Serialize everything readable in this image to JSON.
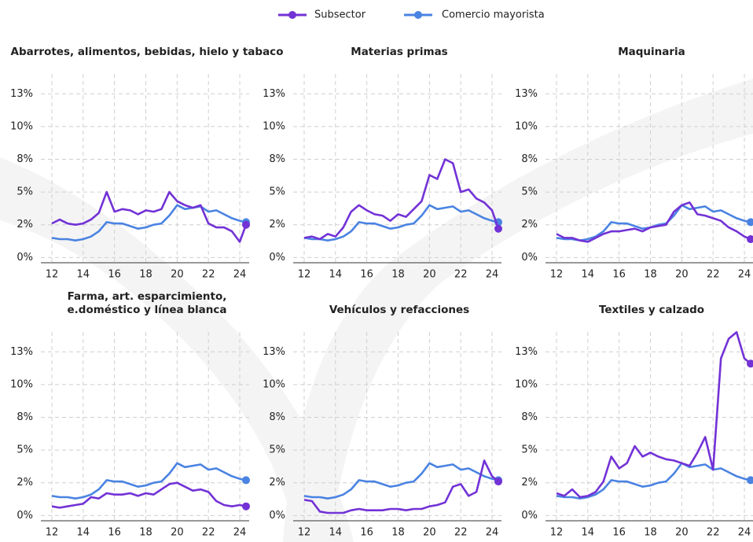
{
  "chart_data": [
    {
      "type": "line",
      "title": [
        "Abarrotes, alimentos, bebidas, hielo y tabaco"
      ],
      "x": [
        12,
        12.5,
        13,
        13.5,
        14,
        14.5,
        15,
        15.5,
        16,
        16.5,
        17,
        17.5,
        18,
        18.5,
        19,
        19.5,
        20,
        20.5,
        21,
        21.5,
        22,
        22.5,
        23,
        23.5,
        24,
        24.4
      ],
      "series": [
        {
          "name": "Subsector",
          "color": "#7232d6",
          "values": [
            2.6,
            2.9,
            2.6,
            2.5,
            2.6,
            2.9,
            3.4,
            5.0,
            3.5,
            3.7,
            3.6,
            3.3,
            3.6,
            3.5,
            3.7,
            5.0,
            4.3,
            4.0,
            3.8,
            4.0,
            2.6,
            2.3,
            2.3,
            2.0,
            1.2,
            2.5
          ]
        },
        {
          "name": "Comercio mayorista",
          "color": "#4a83e2",
          "values": [
            1.5,
            1.4,
            1.4,
            1.3,
            1.4,
            1.6,
            2.0,
            2.7,
            2.6,
            2.6,
            2.4,
            2.2,
            2.3,
            2.5,
            2.6,
            3.2,
            4.0,
            3.7,
            3.8,
            3.9,
            3.5,
            3.6,
            3.3,
            3.0,
            2.8,
            2.7
          ]
        }
      ],
      "xlim": [
        11.6,
        24.6
      ],
      "xticks": [
        12,
        14,
        16,
        18,
        20,
        22,
        24
      ],
      "ylim": [
        -0.4,
        14.5
      ],
      "yticks": [
        {
          "value": 0,
          "label": "0%"
        },
        {
          "value": 2.5,
          "label": "2%"
        },
        {
          "value": 5,
          "label": "5%"
        },
        {
          "value": 7.5,
          "label": "8%"
        },
        {
          "value": 10,
          "label": "10%"
        },
        {
          "value": 12.5,
          "label": "13%"
        }
      ],
      "grid": true
    },
    {
      "type": "line",
      "title": [
        "Materias primas"
      ],
      "x": [
        12,
        12.5,
        13,
        13.5,
        14,
        14.5,
        15,
        15.5,
        16,
        16.5,
        17,
        17.5,
        18,
        18.5,
        19,
        19.5,
        20,
        20.5,
        21,
        21.5,
        22,
        22.5,
        23,
        23.5,
        24,
        24.4
      ],
      "series": [
        {
          "name": "Subsector",
          "color": "#7232d6",
          "values": [
            1.5,
            1.6,
            1.4,
            1.8,
            1.6,
            2.3,
            3.5,
            4.0,
            3.6,
            3.3,
            3.2,
            2.8,
            3.3,
            3.1,
            3.7,
            4.3,
            6.3,
            6.0,
            7.5,
            7.2,
            5.0,
            5.2,
            4.5,
            4.2,
            3.6,
            2.2
          ]
        },
        {
          "name": "Comercio mayorista",
          "color": "#4a83e2",
          "values": [
            1.5,
            1.4,
            1.4,
            1.3,
            1.4,
            1.6,
            2.0,
            2.7,
            2.6,
            2.6,
            2.4,
            2.2,
            2.3,
            2.5,
            2.6,
            3.2,
            4.0,
            3.7,
            3.8,
            3.9,
            3.5,
            3.6,
            3.3,
            3.0,
            2.8,
            2.7
          ]
        }
      ],
      "xlim": [
        11.6,
        24.6
      ],
      "xticks": [
        12,
        14,
        16,
        18,
        20,
        22,
        24
      ],
      "ylim": [
        -0.4,
        14.5
      ],
      "yticks": [
        {
          "value": 0,
          "label": "0%"
        },
        {
          "value": 2.5,
          "label": "2%"
        },
        {
          "value": 5,
          "label": "5%"
        },
        {
          "value": 7.5,
          "label": "8%"
        },
        {
          "value": 10,
          "label": "10%"
        },
        {
          "value": 12.5,
          "label": "13%"
        }
      ],
      "grid": true
    },
    {
      "type": "line",
      "title": [
        "Maquinaria"
      ],
      "x": [
        12,
        12.5,
        13,
        13.5,
        14,
        14.5,
        15,
        15.5,
        16,
        16.5,
        17,
        17.5,
        18,
        18.5,
        19,
        19.5,
        20,
        20.5,
        21,
        21.5,
        22,
        22.5,
        23,
        23.5,
        24,
        24.4
      ],
      "series": [
        {
          "name": "Subsector",
          "color": "#7232d6",
          "values": [
            1.8,
            1.5,
            1.5,
            1.3,
            1.2,
            1.5,
            1.8,
            2.0,
            2.0,
            2.1,
            2.2,
            2.0,
            2.3,
            2.4,
            2.5,
            3.5,
            4.0,
            4.2,
            3.3,
            3.2,
            3.0,
            2.8,
            2.3,
            2.0,
            1.6,
            1.4
          ]
        },
        {
          "name": "Comercio mayorista",
          "color": "#4a83e2",
          "values": [
            1.5,
            1.4,
            1.4,
            1.3,
            1.4,
            1.6,
            2.0,
            2.7,
            2.6,
            2.6,
            2.4,
            2.2,
            2.3,
            2.5,
            2.6,
            3.2,
            4.0,
            3.7,
            3.8,
            3.9,
            3.5,
            3.6,
            3.3,
            3.0,
            2.8,
            2.7
          ]
        }
      ],
      "xlim": [
        11.6,
        24.6
      ],
      "xticks": [
        12,
        14,
        16,
        18,
        20,
        22,
        24
      ],
      "ylim": [
        -0.4,
        14.5
      ],
      "yticks": [
        {
          "value": 0,
          "label": "0%"
        },
        {
          "value": 2.5,
          "label": "2%"
        },
        {
          "value": 5,
          "label": "5%"
        },
        {
          "value": 7.5,
          "label": "8%"
        },
        {
          "value": 10,
          "label": "10%"
        },
        {
          "value": 12.5,
          "label": "13%"
        }
      ],
      "grid": true
    },
    {
      "type": "line",
      "title": [
        "Farma, art. esparcimiento,",
        "e.doméstico y línea blanca"
      ],
      "x": [
        12,
        12.5,
        13,
        13.5,
        14,
        14.5,
        15,
        15.5,
        16,
        16.5,
        17,
        17.5,
        18,
        18.5,
        19,
        19.5,
        20,
        20.5,
        21,
        21.5,
        22,
        22.5,
        23,
        23.5,
        24,
        24.4
      ],
      "series": [
        {
          "name": "Subsector",
          "color": "#7232d6",
          "values": [
            0.7,
            0.6,
            0.7,
            0.8,
            0.9,
            1.4,
            1.3,
            1.7,
            1.6,
            1.6,
            1.7,
            1.5,
            1.7,
            1.6,
            2.0,
            2.4,
            2.5,
            2.2,
            1.9,
            2.0,
            1.8,
            1.1,
            0.8,
            0.7,
            0.8,
            0.7
          ]
        },
        {
          "name": "Comercio mayorista",
          "color": "#4a83e2",
          "values": [
            1.5,
            1.4,
            1.4,
            1.3,
            1.4,
            1.6,
            2.0,
            2.7,
            2.6,
            2.6,
            2.4,
            2.2,
            2.3,
            2.5,
            2.6,
            3.2,
            4.0,
            3.7,
            3.8,
            3.9,
            3.5,
            3.6,
            3.3,
            3.0,
            2.8,
            2.7
          ]
        }
      ],
      "xlim": [
        11.6,
        24.6
      ],
      "xticks": [
        12,
        14,
        16,
        18,
        20,
        22,
        24
      ],
      "ylim": [
        -0.4,
        14.5
      ],
      "yticks": [
        {
          "value": 0,
          "label": "0%"
        },
        {
          "value": 2.5,
          "label": "2%"
        },
        {
          "value": 5,
          "label": "5%"
        },
        {
          "value": 7.5,
          "label": "8%"
        },
        {
          "value": 10,
          "label": "10%"
        },
        {
          "value": 12.5,
          "label": "13%"
        }
      ],
      "grid": true
    },
    {
      "type": "line",
      "title": [
        "Vehículos y refacciones"
      ],
      "x": [
        12,
        12.5,
        13,
        13.5,
        14,
        14.5,
        15,
        15.5,
        16,
        16.5,
        17,
        17.5,
        18,
        18.5,
        19,
        19.5,
        20,
        20.5,
        21,
        21.5,
        22,
        22.5,
        23,
        23.5,
        24,
        24.4
      ],
      "series": [
        {
          "name": "Subsector",
          "color": "#7232d6",
          "values": [
            1.2,
            1.1,
            0.3,
            0.2,
            0.2,
            0.2,
            0.4,
            0.5,
            0.4,
            0.4,
            0.4,
            0.5,
            0.5,
            0.4,
            0.5,
            0.5,
            0.7,
            0.8,
            1.0,
            2.2,
            2.4,
            1.5,
            1.8,
            4.2,
            3.0,
            2.6
          ]
        },
        {
          "name": "Comercio mayorista",
          "color": "#4a83e2",
          "values": [
            1.5,
            1.4,
            1.4,
            1.3,
            1.4,
            1.6,
            2.0,
            2.7,
            2.6,
            2.6,
            2.4,
            2.2,
            2.3,
            2.5,
            2.6,
            3.2,
            4.0,
            3.7,
            3.8,
            3.9,
            3.5,
            3.6,
            3.3,
            3.0,
            2.8,
            2.7
          ]
        }
      ],
      "xlim": [
        11.6,
        24.6
      ],
      "xticks": [
        12,
        14,
        16,
        18,
        20,
        22,
        24
      ],
      "ylim": [
        -0.4,
        14.5
      ],
      "yticks": [
        {
          "value": 0,
          "label": "0%"
        },
        {
          "value": 2.5,
          "label": "2%"
        },
        {
          "value": 5,
          "label": "5%"
        },
        {
          "value": 7.5,
          "label": "8%"
        },
        {
          "value": 10,
          "label": "10%"
        },
        {
          "value": 12.5,
          "label": "13%"
        }
      ],
      "grid": true
    },
    {
      "type": "line",
      "title": [
        "Textiles y calzado"
      ],
      "x": [
        12,
        12.5,
        13,
        13.5,
        14,
        14.5,
        15,
        15.5,
        16,
        16.5,
        17,
        17.5,
        18,
        18.5,
        19,
        19.5,
        20,
        20.5,
        21,
        21.5,
        22,
        22.5,
        23,
        23.5,
        24,
        24.4
      ],
      "series": [
        {
          "name": "Subsector",
          "color": "#7232d6",
          "values": [
            1.7,
            1.5,
            2.0,
            1.4,
            1.5,
            1.8,
            2.6,
            4.5,
            3.6,
            4.0,
            5.3,
            4.5,
            4.8,
            4.5,
            4.3,
            4.2,
            4.0,
            3.8,
            4.8,
            6.0,
            3.5,
            12.0,
            13.5,
            14.0,
            12.0,
            11.6
          ]
        },
        {
          "name": "Comercio mayorista",
          "color": "#4a83e2",
          "values": [
            1.5,
            1.4,
            1.4,
            1.3,
            1.4,
            1.6,
            2.0,
            2.7,
            2.6,
            2.6,
            2.4,
            2.2,
            2.3,
            2.5,
            2.6,
            3.2,
            4.0,
            3.7,
            3.8,
            3.9,
            3.5,
            3.6,
            3.3,
            3.0,
            2.8,
            2.7
          ]
        }
      ],
      "xlim": [
        11.6,
        24.6
      ],
      "xticks": [
        12,
        14,
        16,
        18,
        20,
        22,
        24
      ],
      "ylim": [
        -0.4,
        14.5
      ],
      "yticks": [
        {
          "value": 0,
          "label": "0%"
        },
        {
          "value": 2.5,
          "label": "2%"
        },
        {
          "value": 5,
          "label": "5%"
        },
        {
          "value": 7.5,
          "label": "8%"
        },
        {
          "value": 10,
          "label": "10%"
        },
        {
          "value": 12.5,
          "label": "13%"
        }
      ],
      "grid": true
    }
  ]
}
